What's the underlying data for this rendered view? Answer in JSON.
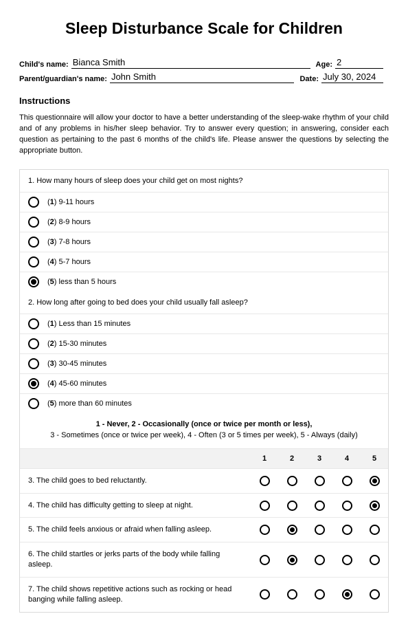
{
  "title": "Sleep Disturbance Scale for Children",
  "fields": {
    "child_name_label": "Child's name:",
    "child_name_value": "Bianca Smith",
    "age_label": "Age:",
    "age_value": "2",
    "parent_label": "Parent/guardian's name:",
    "parent_value": "John Smith",
    "date_label": "Date:",
    "date_value": "July 30, 2024"
  },
  "instructions_title": "Instructions",
  "instructions_body": "This questionnaire will allow your doctor to have a better understanding of the sleep-wake rhythm of your child and of any problems in his/her sleep behavior. Try to answer every question; in answering, consider each question as pertaining to the past 6 months of the child's life. Please answer the questions by selecting the appropriate button.",
  "q1": {
    "text": "1. How many hours of sleep does your child get on most nights?",
    "options": [
      {
        "label": "(1) 9-11 hours",
        "selected": false
      },
      {
        "label": "(2) 8-9 hours",
        "selected": false
      },
      {
        "label": "(3) 7-8 hours",
        "selected": false
      },
      {
        "label": "(4) 5-7 hours",
        "selected": false
      },
      {
        "label": "(5) less than 5 hours",
        "selected": true
      }
    ]
  },
  "q2": {
    "text": "2. How long after going to bed does your child usually fall asleep?",
    "options": [
      {
        "label": "(1) Less than 15 minutes",
        "selected": false
      },
      {
        "label": "(2) 15-30 minutes",
        "selected": false
      },
      {
        "label": "(3) 30-45 minutes",
        "selected": false
      },
      {
        "label": "(4) 45-60 minutes",
        "selected": true
      },
      {
        "label": "(5) more than 60 minutes",
        "selected": false
      }
    ]
  },
  "scale_legend_line1": "1 - Never, 2 - Occasionally (once or twice per month or less),",
  "scale_legend_line2": "3 - Sometimes (once or twice per week), 4 - Often (3 or 5 times per week), 5 - Always (daily)",
  "scale_cols": [
    "1",
    "2",
    "3",
    "4",
    "5"
  ],
  "scale_items": [
    {
      "text": "3. The child goes to bed reluctantly.",
      "selected": 5
    },
    {
      "text": "4. The child has difficulty getting to sleep at night.",
      "selected": 5
    },
    {
      "text": "5. The child feels anxious or afraid when falling asleep.",
      "selected": 2
    },
    {
      "text": "6. The child startles or jerks parts of the body while falling asleep.",
      "selected": 2
    },
    {
      "text": "7. The child shows repetitive actions such as rocking or head banging while falling asleep.",
      "selected": 4
    }
  ]
}
